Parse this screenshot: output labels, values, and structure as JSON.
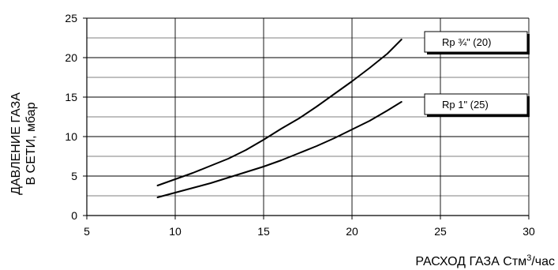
{
  "chart_data": {
    "type": "line",
    "title": "",
    "xlabel": "РАСХОД ГАЗА Стм",
    "xlabel_sup": "3",
    "xlabel_suffix": "/час",
    "ylabel_line1": "ДАВЛЕНИЕ ГАЗА",
    "ylabel_line2": "В СЕТИ, мбар",
    "xlim": [
      5,
      30
    ],
    "ylim": [
      0,
      25
    ],
    "xticks": [
      "5",
      "10",
      "15",
      "20",
      "25",
      "30"
    ],
    "yticks": [
      "0",
      "5",
      "10",
      "15",
      "20",
      "25"
    ],
    "grid": true,
    "series": [
      {
        "name": "Rp ¾\" (20)",
        "x": [
          9,
          10,
          11,
          12,
          13,
          14,
          15,
          16,
          17,
          18,
          19,
          20,
          21,
          22,
          22.8
        ],
        "y": [
          3.8,
          4.6,
          5.4,
          6.3,
          7.2,
          8.3,
          9.6,
          11.0,
          12.3,
          13.8,
          15.4,
          17.0,
          18.7,
          20.5,
          22.3
        ]
      },
      {
        "name": "Rp 1\" (25)",
        "x": [
          9,
          10,
          11,
          12,
          13,
          14,
          15,
          16,
          17,
          18,
          19,
          20,
          21,
          22,
          22.8
        ],
        "y": [
          2.3,
          2.9,
          3.5,
          4.1,
          4.8,
          5.5,
          6.2,
          7.0,
          7.9,
          8.8,
          9.8,
          10.9,
          12.0,
          13.3,
          14.4
        ]
      }
    ]
  }
}
